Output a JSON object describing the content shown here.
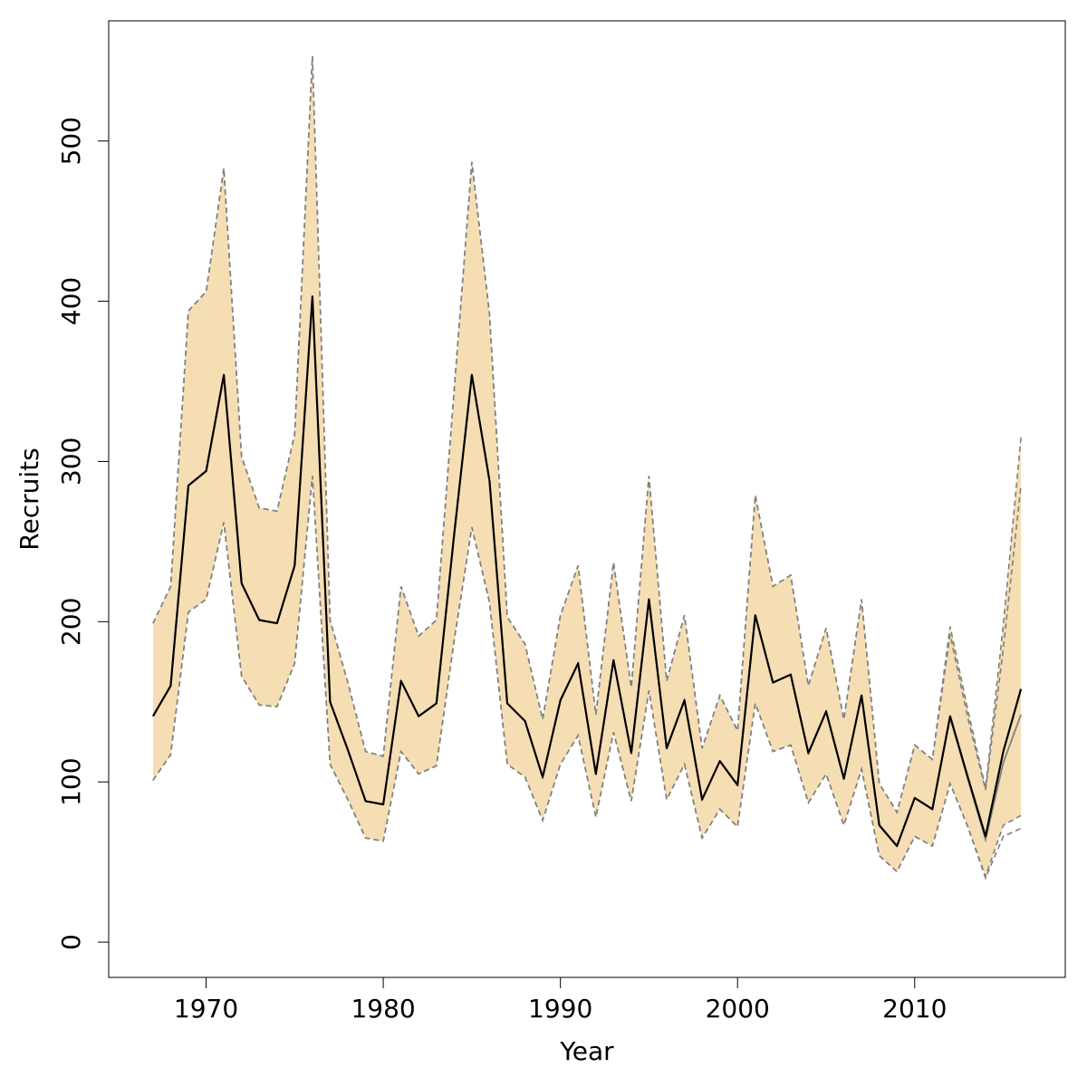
{
  "chart_data": {
    "type": "line",
    "xlabel": "Year",
    "ylabel": "Recruits",
    "xlim": [
      1964.5,
      2018.5
    ],
    "ylim": [
      -22,
      575
    ],
    "x_ticks": [
      1970,
      1980,
      1990,
      2000,
      2010
    ],
    "y_ticks": [
      0,
      100,
      200,
      300,
      400,
      500
    ],
    "grid": false,
    "legend": "none",
    "colors": {
      "band_fill": "#F5DEB3",
      "band_edge": "#808080",
      "main_line": "#000000",
      "secondary_line": "#808080",
      "axis": "#000000"
    },
    "x": [
      1967,
      1968,
      1969,
      1970,
      1971,
      1972,
      1973,
      1974,
      1975,
      1976,
      1977,
      1978,
      1979,
      1980,
      1981,
      1982,
      1983,
      1984,
      1985,
      1986,
      1987,
      1988,
      1989,
      1990,
      1991,
      1992,
      1993,
      1994,
      1995,
      1996,
      1997,
      1998,
      1999,
      2000,
      2001,
      2002,
      2003,
      2004,
      2005,
      2006,
      2007,
      2008,
      2009,
      2010,
      2011,
      2012,
      2013,
      2014,
      2015,
      2016
    ],
    "series": [
      {
        "role": "estimate",
        "values": [
          141,
          160,
          285,
          294,
          354,
          224,
          201,
          199,
          235,
          403,
          150,
          120,
          88,
          86,
          163,
          141,
          149,
          254,
          354,
          288,
          149,
          138,
          103,
          151,
          174,
          105,
          176,
          118,
          214,
          121,
          151,
          89,
          113,
          98,
          204,
          162,
          167,
          118,
          144,
          102,
          154,
          73,
          60,
          90,
          83,
          141,
          103,
          66,
          119,
          158
        ]
      },
      {
        "role": "estimate-previous",
        "values": [
          141,
          160,
          285,
          294,
          354,
          224,
          201,
          199,
          235,
          403,
          150,
          120,
          88,
          86,
          163,
          141,
          149,
          254,
          354,
          288,
          149,
          138,
          103,
          151,
          174,
          105,
          176,
          118,
          214,
          121,
          151,
          89,
          113,
          98,
          204,
          162,
          167,
          118,
          144,
          102,
          154,
          73,
          60,
          90,
          83,
          140,
          102,
          64,
          112,
          142
        ]
      },
      {
        "role": "upper-bound",
        "values": [
          199,
          222,
          394,
          406,
          483,
          303,
          271,
          269,
          317,
          553,
          201,
          162,
          119,
          116,
          222,
          191,
          201,
          344,
          487,
          392,
          203,
          186,
          139,
          204,
          235,
          142,
          237,
          159,
          291,
          163,
          204,
          121,
          154,
          132,
          279,
          222,
          229,
          160,
          196,
          139,
          214,
          99,
          81,
          123,
          114,
          197,
          145,
          96,
          198,
          315
        ]
      },
      {
        "role": "lower-bound",
        "values": [
          101,
          117,
          206,
          214,
          262,
          166,
          148,
          147,
          174,
          291,
          111,
          89,
          65,
          63,
          119,
          105,
          110,
          188,
          259,
          212,
          111,
          103,
          76,
          111,
          129,
          78,
          131,
          88,
          157,
          89,
          111,
          65,
          83,
          72,
          149,
          119,
          123,
          87,
          105,
          73,
          108,
          54,
          44,
          66,
          60,
          99,
          72,
          41,
          73,
          79
        ]
      },
      {
        "role": "upper-bound-previous",
        "values": [
          199,
          222,
          394,
          406,
          483,
          303,
          271,
          269,
          317,
          553,
          201,
          162,
          119,
          116,
          222,
          191,
          201,
          344,
          487,
          392,
          203,
          186,
          139,
          204,
          235,
          142,
          237,
          159,
          291,
          163,
          204,
          121,
          154,
          132,
          279,
          222,
          229,
          160,
          196,
          139,
          214,
          99,
          81,
          123,
          114,
          192,
          140,
          95,
          183,
          285
        ]
      },
      {
        "role": "lower-bound-previous",
        "values": [
          101,
          117,
          206,
          214,
          262,
          166,
          148,
          147,
          174,
          291,
          111,
          89,
          65,
          63,
          119,
          105,
          110,
          188,
          259,
          212,
          111,
          103,
          76,
          111,
          129,
          78,
          131,
          88,
          157,
          89,
          111,
          65,
          83,
          72,
          149,
          119,
          123,
          87,
          105,
          73,
          108,
          54,
          44,
          66,
          60,
          99,
          72,
          40,
          66,
          71
        ]
      }
    ]
  }
}
